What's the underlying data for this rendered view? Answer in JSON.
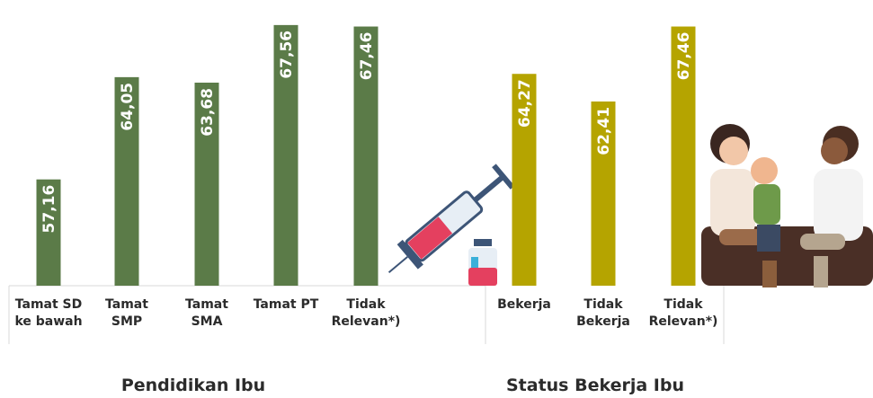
{
  "chart_data": [
    {
      "type": "bar",
      "title": "Pendidikan Ibu",
      "categories": [
        "Tamat SD ke bawah",
        "Tamat SMP",
        "Tamat SMA",
        "Tamat PT",
        "Tidak Relevan*)"
      ],
      "values": [
        57.16,
        64.05,
        63.68,
        67.56,
        67.46
      ],
      "value_labels": [
        "57,16",
        "64,05",
        "63,68",
        "67,56",
        "67,46"
      ],
      "color": "#5b7b48",
      "ylim": [
        50,
        68.4
      ]
    },
    {
      "type": "bar",
      "title": "Status Bekerja Ibu",
      "categories": [
        "Bekerja",
        "Tidak Bekerja",
        "Tidak Relevan*)"
      ],
      "values": [
        64.27,
        62.41,
        67.46
      ],
      "value_labels": [
        "64,27",
        "62,41",
        "67,46"
      ],
      "color": "#b5a400",
      "ylim": [
        50,
        68.4
      ]
    }
  ]
}
